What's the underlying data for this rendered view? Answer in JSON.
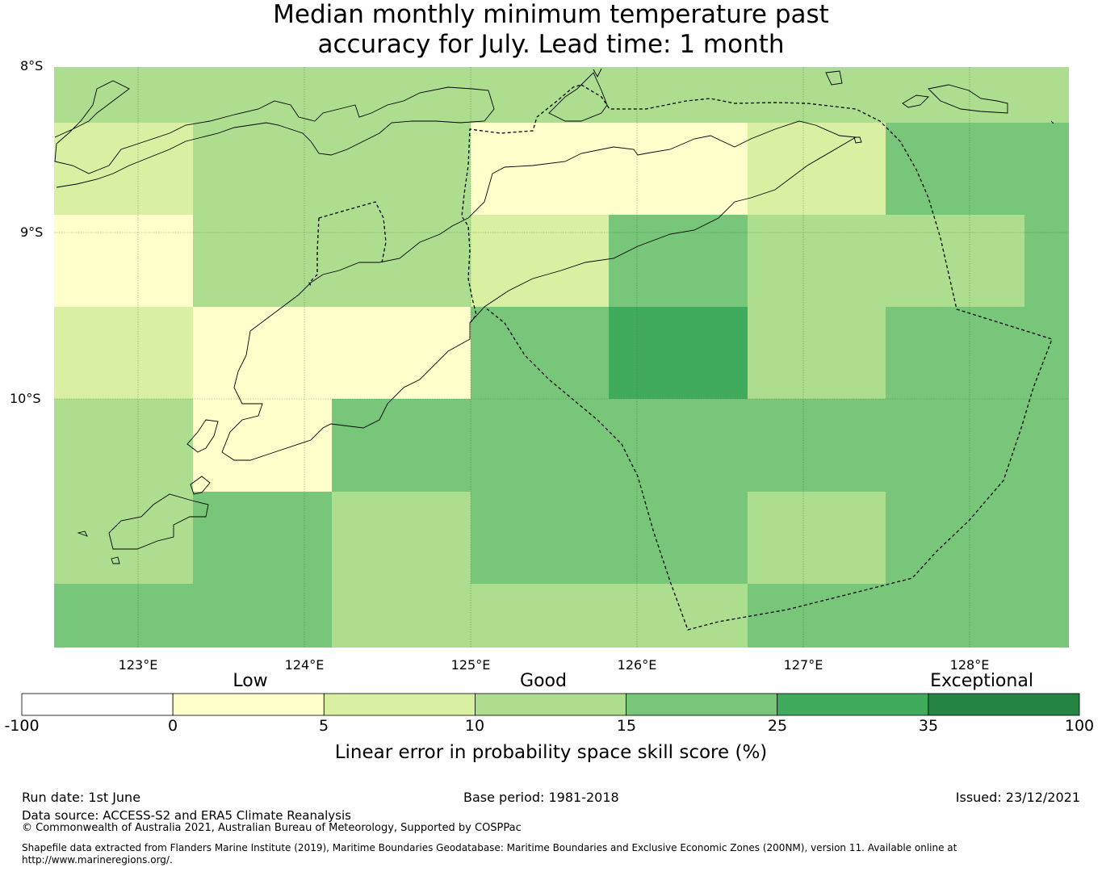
{
  "title": {
    "line1": "Median monthly minimum temperature past",
    "line2": "accuracy for July. Lead time: 1 month"
  },
  "axes": {
    "lat_labels": [
      "8°S",
      "9°S",
      "10°S"
    ],
    "lon_labels": [
      "123°E",
      "124°E",
      "125°E",
      "126°E",
      "127°E",
      "128°E"
    ]
  },
  "map_data": {
    "lon_range": [
      122.5,
      128.6
    ],
    "lat_range": [
      -8.0,
      -11.5
    ],
    "cell_size_deg": [
      0.833,
      0.556
    ],
    "grid_lon_start": 122.5,
    "grid_lat_start": -8.0,
    "cell_values_category": [
      [
        3,
        3,
        3,
        3,
        3,
        3,
        3,
        3
      ],
      [
        2,
        3,
        3,
        1,
        1,
        2,
        4,
        4
      ],
      [
        1,
        3,
        3,
        2,
        4,
        3,
        3,
        4
      ],
      [
        2,
        1,
        1,
        4,
        5,
        3,
        4,
        4
      ],
      [
        3,
        1,
        4,
        4,
        4,
        4,
        4,
        4
      ],
      [
        3,
        4,
        3,
        4,
        4,
        3,
        4,
        4
      ],
      [
        4,
        4,
        3,
        3,
        3,
        4,
        4,
        4
      ]
    ]
  },
  "colorbar": {
    "category_labels": [
      "Low",
      "Good",
      "Exceptional"
    ],
    "ticks": [
      "-100",
      "0",
      "5",
      "10",
      "15",
      "25",
      "35",
      "100"
    ],
    "colors": [
      "#ffffff",
      "#ffffcc",
      "#d9f0a3",
      "#addd8e",
      "#78c679",
      "#41ab5d",
      "#238443"
    ],
    "title": "Linear error in probability space skill score (%)"
  },
  "footer": {
    "run_date": "Run date: 1st June",
    "base_period": "Base period: 1981-2018",
    "issued": "Issued: 23/12/2021",
    "data_source": "Data source: ACCESS-S2 and ERA5 Climate Reanalysis",
    "copyright": "© Commonwealth of Australia 2021, Australian Bureau of Meteorology, Supported by COSPPac",
    "shapefile": "Shapefile data extracted from Flanders Marine Institute (2019), Maritime Boundaries Geodatabase: Maritime Boundaries and Exclusive Economic Zones (200NM), version 11. Available online at http://www.marineregions.org/."
  }
}
